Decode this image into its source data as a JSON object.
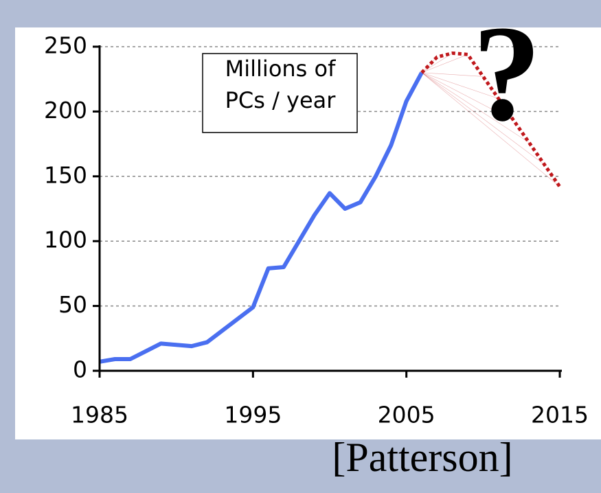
{
  "chart_data": {
    "type": "line",
    "annotation": [
      "Millions of",
      "PCs / year"
    ],
    "question": "?",
    "source": "[Patterson]",
    "x": [
      1985,
      1986,
      1987,
      1988,
      1989,
      1990,
      1991,
      1992,
      1993,
      1994,
      1995,
      1996,
      1997,
      1998,
      1999,
      2000,
      2001,
      2002,
      2003,
      2004,
      2005,
      2006,
      2007,
      2008,
      2009,
      2010,
      2011,
      2012,
      2013,
      2014,
      2015
    ],
    "series": [
      {
        "color": "#4a6ff0",
        "style": "solid",
        "values": [
          7,
          9,
          9,
          15,
          21,
          20,
          19,
          22,
          31,
          40,
          49,
          79,
          80,
          100,
          120,
          137,
          125,
          130,
          150,
          174,
          208,
          230,
          null,
          null,
          null,
          null,
          null,
          null,
          null,
          null,
          null
        ]
      },
      {
        "color": "#c0181c",
        "style": "dotted",
        "values": [
          null,
          null,
          null,
          null,
          null,
          null,
          null,
          null,
          null,
          null,
          null,
          null,
          null,
          null,
          null,
          null,
          null,
          null,
          null,
          null,
          null,
          230,
          242,
          245,
          244,
          227,
          210,
          193,
          176,
          159,
          142
        ]
      }
    ],
    "xlim": [
      1985,
      2015
    ],
    "xticks": [
      1985,
      1995,
      2005,
      2015
    ],
    "ylim": [
      0,
      250
    ],
    "yticks": [
      0,
      50,
      100,
      150,
      200,
      250
    ],
    "grid": true
  }
}
